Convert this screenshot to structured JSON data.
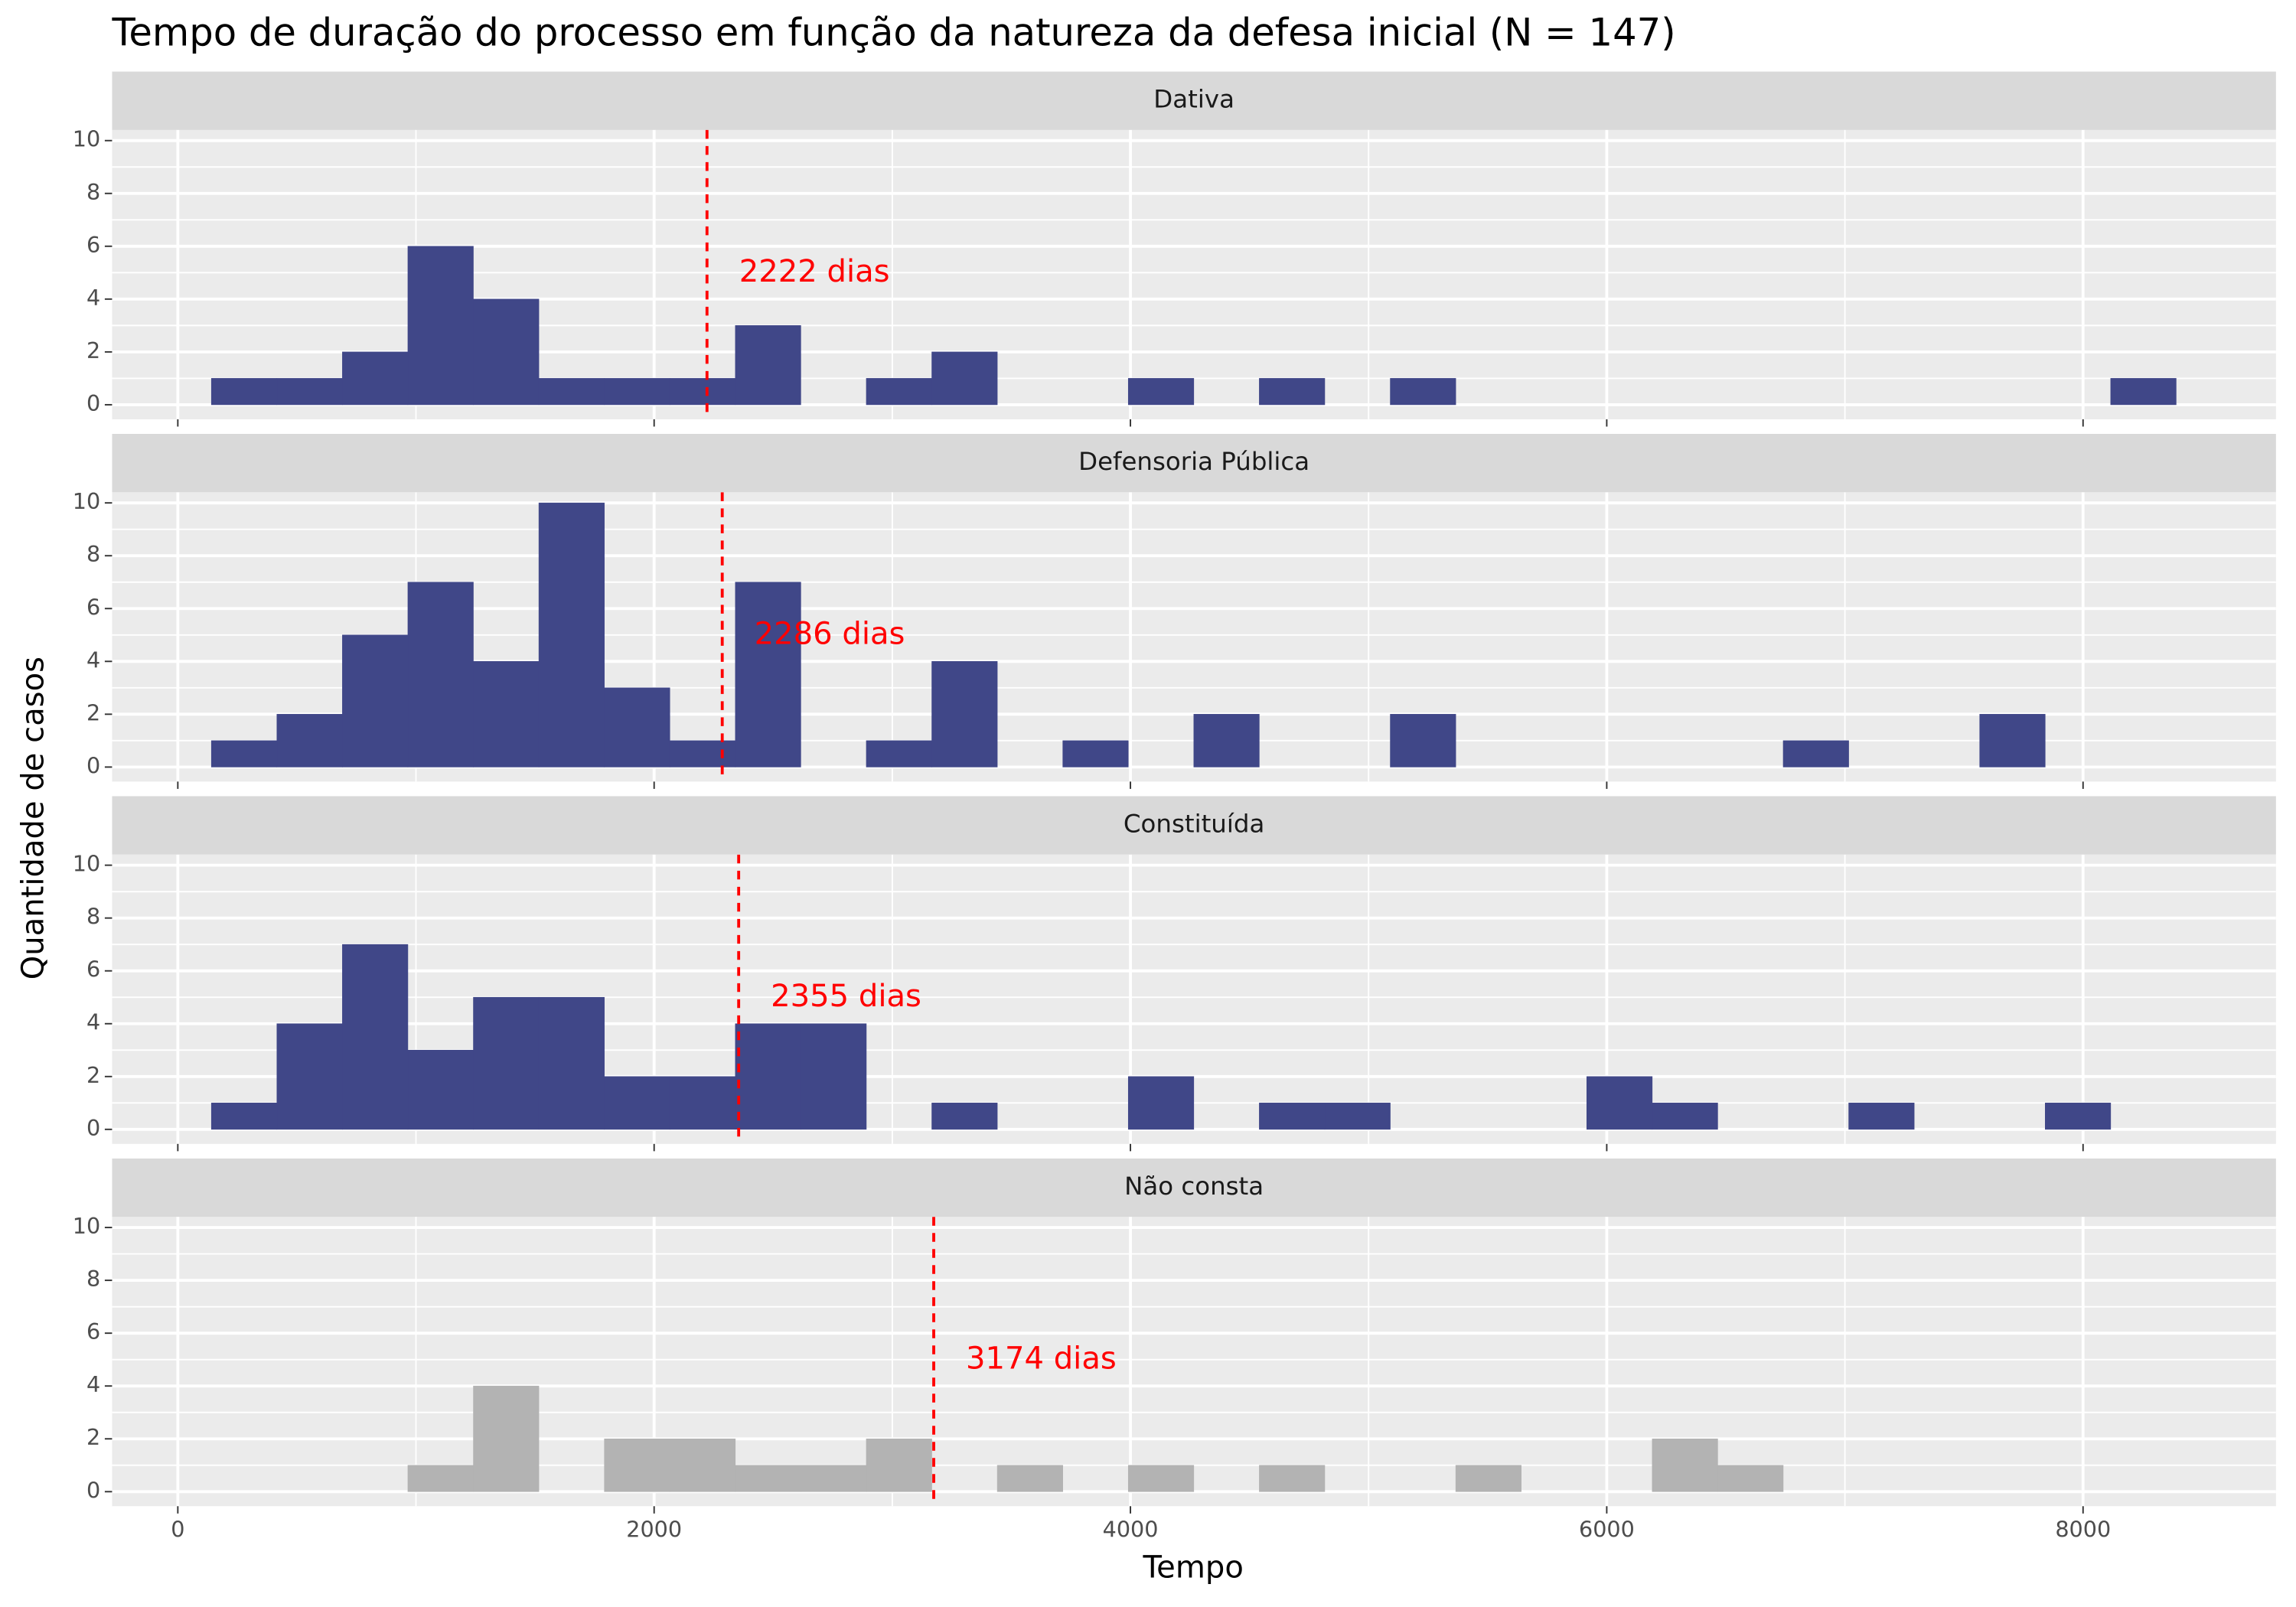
{
  "chart_data": {
    "type": "histogram",
    "title": "Tempo de duração do processo em função da natureza da defesa inicial (N = 147)",
    "x_label": "Tempo",
    "y_label": "Quantidade de casos",
    "bins": [
      141,
      416,
      691,
      966,
      1241,
      1516,
      1791,
      2066,
      2341,
      2616,
      2891,
      3166,
      3441,
      3716,
      3991,
      4266,
      4541,
      4816,
      5091,
      5366,
      5641,
      5916,
      6191,
      6466,
      6741,
      7016,
      7291,
      7566,
      7841,
      8116,
      8391
    ],
    "xlim": [
      -276,
      8810
    ],
    "xticks": [
      0,
      2000,
      4000,
      6000,
      8000
    ],
    "ylim": [
      -0.55,
      10.4
    ],
    "yticks": [
      0,
      2,
      4,
      6,
      8,
      10
    ],
    "grid": true,
    "mean_color": "#ff0000",
    "series": [
      {
        "name": "Dativa",
        "color": "#404788",
        "mean": 2222,
        "mean_label": "2222 dias",
        "values": [
          1,
          1,
          2,
          6,
          4,
          1,
          1,
          1,
          3,
          0,
          1,
          2,
          0,
          0,
          1,
          0,
          1,
          0,
          1,
          0,
          0,
          0,
          0,
          0,
          0,
          0,
          0,
          0,
          0,
          1
        ]
      },
      {
        "name": "Defensoria Pública",
        "color": "#404788",
        "mean": 2286,
        "mean_label": "2286 dias",
        "values": [
          1,
          2,
          5,
          7,
          4,
          10,
          3,
          1,
          7,
          0,
          1,
          4,
          0,
          1,
          0,
          2,
          0,
          0,
          2,
          0,
          0,
          0,
          0,
          0,
          1,
          0,
          0,
          2,
          0,
          0
        ]
      },
      {
        "name": "Constituída",
        "color": "#404788",
        "mean": 2355,
        "mean_label": "2355 dias",
        "values": [
          1,
          4,
          7,
          3,
          5,
          5,
          2,
          2,
          4,
          4,
          0,
          1,
          0,
          0,
          2,
          0,
          1,
          1,
          0,
          0,
          0,
          2,
          1,
          0,
          0,
          1,
          0,
          0,
          1,
          0
        ]
      },
      {
        "name": "Não consta",
        "color": "#b3b3b3",
        "mean": 3174,
        "mean_label": "3174 dias",
        "values": [
          0,
          0,
          0,
          1,
          4,
          0,
          2,
          2,
          1,
          1,
          2,
          0,
          1,
          0,
          1,
          0,
          1,
          0,
          0,
          1,
          0,
          0,
          2,
          1,
          0,
          0,
          0,
          0,
          0,
          0
        ]
      }
    ]
  }
}
